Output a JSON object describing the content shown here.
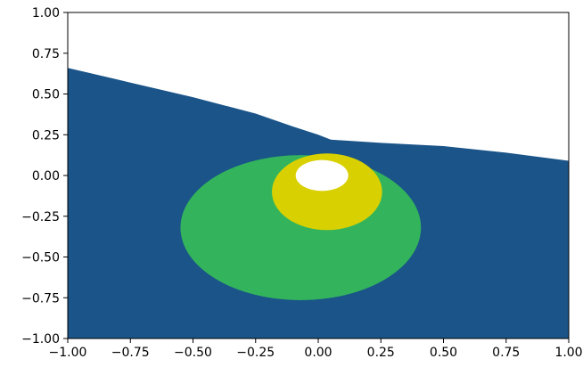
{
  "chart_data": {
    "type": "area",
    "title": "",
    "xlabel": "",
    "ylabel": "",
    "xlim": [
      -1.0,
      1.0
    ],
    "ylim": [
      -1.0,
      1.0
    ],
    "grid": false,
    "xticks": [
      "−1.00",
      "−0.75",
      "−0.50",
      "−0.25",
      "0.00",
      "0.25",
      "0.50",
      "0.75",
      "1.00"
    ],
    "yticks": [
      "1.00",
      "0.75",
      "0.50",
      "0.25",
      "0.00",
      "−0.25",
      "−0.50",
      "−0.75",
      "−1.00"
    ],
    "xtick_values": [
      -1.0,
      -0.75,
      -0.5,
      -0.25,
      0.0,
      0.25,
      0.5,
      0.75,
      1.0
    ],
    "ytick_values": [
      1.0,
      0.75,
      0.5,
      0.25,
      0.0,
      -0.25,
      -0.5,
      -0.75,
      -1.0
    ],
    "series": [
      {
        "shape": "upper-boundary",
        "color": "#1a5488",
        "x": [
          -1.0,
          -0.75,
          -0.5,
          -0.25,
          -0.1,
          0.0,
          0.05,
          0.25,
          0.5,
          0.75,
          1.0
        ],
        "y": [
          0.66,
          0.57,
          0.48,
          0.38,
          0.3,
          0.25,
          0.22,
          0.2,
          0.18,
          0.14,
          0.09
        ]
      },
      {
        "shape": "ellipse",
        "color": "#33b45c",
        "center": [
          -0.07,
          -0.32
        ],
        "radius": [
          0.48,
          0.445
        ]
      },
      {
        "shape": "ellipse",
        "color": "#d8d000",
        "center": [
          0.035,
          -0.1
        ],
        "radius": [
          0.22,
          0.235
        ]
      },
      {
        "shape": "ellipse",
        "color": "#ffffff",
        "center": [
          0.015,
          0.0
        ],
        "radius": [
          0.105,
          0.095
        ]
      }
    ]
  }
}
